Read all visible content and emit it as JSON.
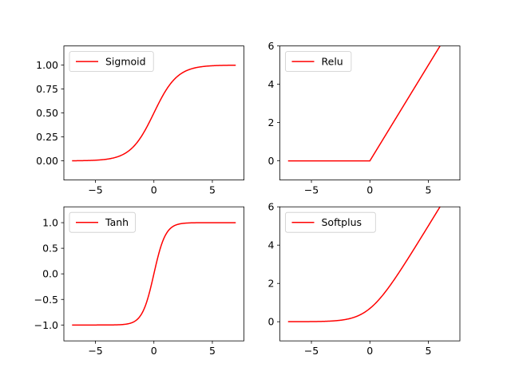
{
  "chart_data": [
    {
      "type": "line",
      "title": "",
      "legend": "Sigmoid",
      "legend_placement": "top-left",
      "function": "sigmoid",
      "x_range": [
        -7,
        7
      ],
      "xlim": [
        -7.7,
        7.7
      ],
      "ylim": [
        -0.2,
        1.2
      ],
      "xticks": [
        -5,
        0,
        5
      ],
      "xtick_labels": [
        "−5",
        "0",
        "5"
      ],
      "yticks": [
        0,
        0.25,
        0.5,
        0.75,
        1
      ],
      "ytick_labels": [
        "0.00",
        "0.25",
        "0.50",
        "0.75",
        "1.00"
      ],
      "color": "#ff0000"
    },
    {
      "type": "line",
      "title": "",
      "legend": "Relu",
      "legend_placement": "top-left",
      "function": "relu",
      "x_range": [
        -7,
        7
      ],
      "xlim": [
        -7.7,
        7.7
      ],
      "ylim": [
        -1,
        6
      ],
      "xticks": [
        -5,
        0,
        5
      ],
      "xtick_labels": [
        "−5",
        "0",
        "5"
      ],
      "yticks": [
        0,
        2,
        4,
        6
      ],
      "ytick_labels": [
        "0",
        "2",
        "4",
        "6"
      ],
      "color": "#ff0000"
    },
    {
      "type": "line",
      "title": "",
      "legend": "Tanh",
      "legend_placement": "top-left",
      "function": "tanh",
      "x_range": [
        -7,
        7
      ],
      "xlim": [
        -7.7,
        7.7
      ],
      "ylim": [
        -1.31,
        1.31
      ],
      "xticks": [
        -5,
        0,
        5
      ],
      "xtick_labels": [
        "−5",
        "0",
        "5"
      ],
      "yticks": [
        -1,
        -0.5,
        0,
        0.5,
        1
      ],
      "ytick_labels": [
        "−1.0",
        "−0.5",
        "0.0",
        "0.5",
        "1.0"
      ],
      "color": "#ff0000"
    },
    {
      "type": "line",
      "title": "",
      "legend": "Softplus",
      "legend_placement": "top-left",
      "function": "softplus",
      "x_range": [
        -7,
        7
      ],
      "xlim": [
        -7.7,
        7.7
      ],
      "ylim": [
        -1,
        6
      ],
      "xticks": [
        -5,
        0,
        5
      ],
      "xtick_labels": [
        "−5",
        "0",
        "5"
      ],
      "yticks": [
        0,
        2,
        4,
        6
      ],
      "ytick_labels": [
        "0",
        "2",
        "4",
        "6"
      ],
      "color": "#ff0000"
    }
  ]
}
